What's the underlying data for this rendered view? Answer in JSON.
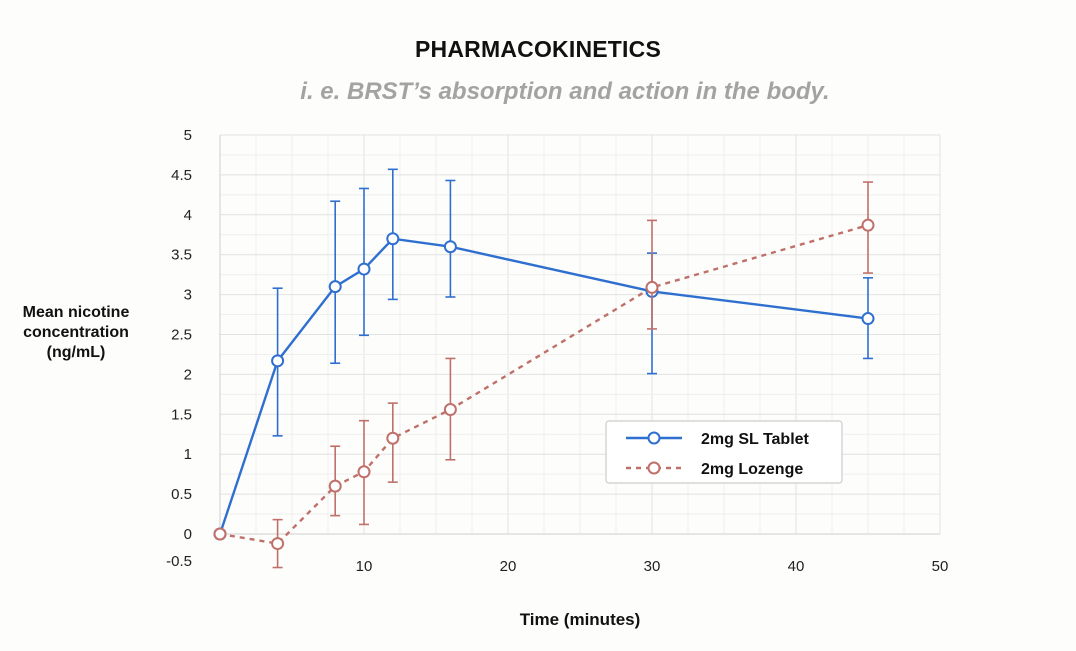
{
  "chart_data": {
    "type": "line",
    "title": "PHARMACOKINETICS",
    "subtitle": "i. e. BRST’s absorption and action in the body.",
    "xlabel": "Time (minutes)",
    "ylabel": "Mean nicotine concentration (ng/mL)",
    "xlim": [
      0,
      50
    ],
    "ylim": [
      -0.5,
      5
    ],
    "xticks": [
      10,
      20,
      30,
      40,
      50
    ],
    "yticks": [
      -0.5,
      0,
      0.5,
      1,
      1.5,
      2,
      2.5,
      3,
      3.5,
      4,
      4.5,
      5
    ],
    "grid": true,
    "legend_position": "center-right",
    "series": [
      {
        "name": "2mg SL Tablet",
        "color": "#2f6fd0",
        "line_style": "solid",
        "points": [
          {
            "x": 0,
            "y": 0
          },
          {
            "x": 4,
            "y": 2.17,
            "err_low": 1.23,
            "err_high": 3.08
          },
          {
            "x": 8,
            "y": 3.1,
            "err_low": 2.14,
            "err_high": 4.17
          },
          {
            "x": 10,
            "y": 3.32,
            "err_low": 2.49,
            "err_high": 4.33
          },
          {
            "x": 12,
            "y": 3.7,
            "err_low": 2.94,
            "err_high": 4.57
          },
          {
            "x": 16,
            "y": 3.6,
            "err_low": 2.97,
            "err_high": 4.43
          },
          {
            "x": 30,
            "y": 3.04,
            "err_low": 2.01,
            "err_high": 3.52
          },
          {
            "x": 45,
            "y": 2.7,
            "err_low": 2.2,
            "err_high": 3.21
          }
        ]
      },
      {
        "name": "2mg Lozenge",
        "color": "#c0706a",
        "line_style": "dashed",
        "points": [
          {
            "x": 0,
            "y": 0
          },
          {
            "x": 4,
            "y": -0.12,
            "err_low": -0.42,
            "err_high": 0.18
          },
          {
            "x": 8,
            "y": 0.6,
            "err_low": 0.23,
            "err_high": 1.1
          },
          {
            "x": 10,
            "y": 0.78,
            "err_low": 0.12,
            "err_high": 1.42
          },
          {
            "x": 12,
            "y": 1.2,
            "err_low": 0.65,
            "err_high": 1.64
          },
          {
            "x": 16,
            "y": 1.56,
            "err_low": 0.93,
            "err_high": 2.2
          },
          {
            "x": 30,
            "y": 3.09,
            "err_low": 2.57,
            "err_high": 3.93
          },
          {
            "x": 45,
            "y": 3.87,
            "err_low": 3.27,
            "err_high": 4.41
          }
        ]
      }
    ]
  }
}
